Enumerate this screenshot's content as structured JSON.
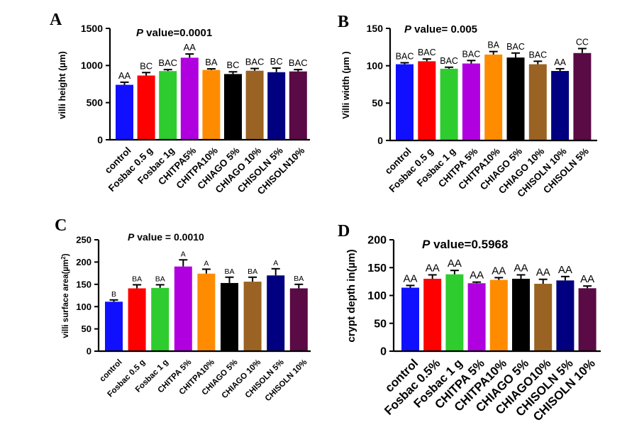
{
  "figure": {
    "caption_letters": [
      "A",
      "B",
      "C",
      "D"
    ]
  },
  "chart_data": [
    {
      "panel": "A",
      "type": "bar",
      "pvalue_italic": "P",
      "pvalue_rest": " value=0.0001",
      "ylabel": "villi height (µm)",
      "ylim": [
        0,
        1500
      ],
      "yticks": [
        0,
        500,
        1000,
        1500
      ],
      "categories": [
        "control",
        "Fosbac 0.5 g",
        "Fosbac 1g",
        "CHITPA5%",
        "CHITPA10%",
        "CHIAGO 5%",
        "CHIAGO 10%",
        "CHISOLN 5%",
        "CHISOLN10%"
      ],
      "values": [
        740,
        865,
        925,
        1105,
        940,
        885,
        930,
        910,
        920
      ],
      "errors": [
        35,
        40,
        20,
        50,
        15,
        30,
        30,
        55,
        25
      ],
      "significance": [
        "AA",
        "BC",
        "BAC",
        "AA",
        "BA",
        "BC",
        "BAC",
        "BC",
        "BAC"
      ],
      "colors": [
        "#1010ff",
        "#ff0000",
        "#2ecc2e",
        "#b000e0",
        "#ff8c00",
        "#000000",
        "#9a6324",
        "#000080",
        "#5a0a45"
      ]
    },
    {
      "panel": "B",
      "type": "bar",
      "pvalue_italic": "P",
      "pvalue_rest": " value= 0.005",
      "ylabel": "Villi width (µm )",
      "ylim": [
        0,
        150
      ],
      "yticks": [
        0,
        50,
        100,
        150
      ],
      "categories": [
        "control",
        "Fosbac 0.5 g",
        "Fosbac 1 g",
        "CHITPA 5%",
        "CHITPA10%",
        "CHIAGO 5%",
        "CHIAGO 10%",
        "CHISOLN 10%",
        "CHISOLN 5%"
      ],
      "values": [
        102,
        106,
        96,
        103,
        115,
        111,
        102,
        93,
        117
      ],
      "errors": [
        2,
        3,
        2,
        4,
        4,
        6,
        4,
        3,
        6
      ],
      "significance": [
        "BAC",
        "BAC",
        "BAC",
        "BAC",
        "BA",
        "BAC",
        "BAC",
        "AA",
        "CC"
      ],
      "colors": [
        "#1010ff",
        "#ff0000",
        "#2ecc2e",
        "#b000e0",
        "#ff8c00",
        "#000000",
        "#9a6324",
        "#000080",
        "#5a0a45"
      ]
    },
    {
      "panel": "C",
      "type": "bar",
      "pvalue_italic": "P",
      "pvalue_rest": " value = 0.0010",
      "ylabel": "villi surface area(µm",
      "ylabel_sup": "2",
      "ylabel_end": ")",
      "ylim": [
        0,
        250
      ],
      "yticks": [
        0,
        50,
        100,
        150,
        200,
        250
      ],
      "categories": [
        "control",
        "Fosbac 0.5 g",
        "Fosbac 1 g",
        "CHITPA 5%",
        "CHITPA10%",
        "CHIAGO 5%",
        "CHIAGO 10%",
        "CHISOLN 5%",
        "CHISOLN 10%"
      ],
      "values": [
        111,
        141,
        142,
        190,
        174,
        153,
        156,
        170,
        141
      ],
      "errors": [
        4,
        8,
        7,
        15,
        10,
        13,
        10,
        15,
        9
      ],
      "significance": [
        "B",
        "BA",
        "BA",
        "A",
        "A",
        "BA",
        "BA",
        "A",
        "BA"
      ],
      "colors": [
        "#1010ff",
        "#ff0000",
        "#2ecc2e",
        "#b000e0",
        "#ff8c00",
        "#000000",
        "#9a6324",
        "#000080",
        "#5a0a45"
      ]
    },
    {
      "panel": "D",
      "type": "bar",
      "pvalue_italic": "P",
      "pvalue_rest": " value=0.5968",
      "ylabel": "crypt depth in(µm)",
      "ylim": [
        0,
        200
      ],
      "yticks": [
        0,
        50,
        100,
        150,
        200
      ],
      "categories": [
        "control",
        "Fosbac 0.5%",
        "Fosbac 1 g",
        "CHITPA 5%",
        "CHITPA10%",
        "CHIAGO 5%",
        "CHIAGO10%",
        "CHISOLN 5%",
        "CHISOLN 10%"
      ],
      "values": [
        114,
        130,
        138,
        122,
        128,
        130,
        121,
        127,
        113
      ],
      "errors": [
        4,
        7,
        7,
        2,
        4,
        7,
        8,
        7,
        4
      ],
      "significance": [
        "AA",
        "AA",
        "AA",
        "AA",
        "AA",
        "AA",
        "AA",
        "AA",
        "AA"
      ],
      "colors": [
        "#1010ff",
        "#ff0000",
        "#2ecc2e",
        "#b000e0",
        "#ff8c00",
        "#000000",
        "#9a6324",
        "#000080",
        "#5a0a45"
      ]
    }
  ]
}
